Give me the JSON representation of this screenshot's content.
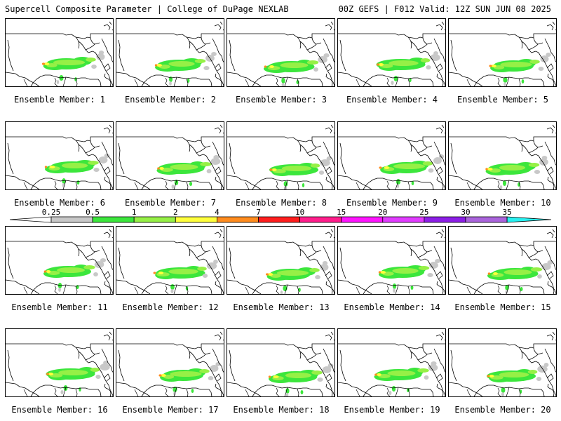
{
  "header": {
    "left_title": "Supercell Composite Parameter | College of DuPage NEXLAB",
    "right_title": "00Z GEFS | F012 Valid: 12Z SUN JUN 08 2025"
  },
  "colorbar": {
    "ticks": [
      "0.25",
      "0.5",
      "1",
      "2",
      "4",
      "7",
      "10",
      "15",
      "20",
      "25",
      "30",
      "35"
    ],
    "colors": [
      "#c8c8c8",
      "#3ce63c",
      "#96f046",
      "#ffff3c",
      "#ff8c1e",
      "#ff1e1e",
      "#ff1e8c",
      "#ff14ff",
      "#e13cff",
      "#8c1ee6",
      "#aa64dc",
      "#28f0f0"
    ]
  },
  "member_label_prefix": "Ensemble Member:",
  "panels": [
    {
      "member": "1",
      "label": "Ensemble Member: 1"
    },
    {
      "member": "2",
      "label": "Ensemble Member: 2"
    },
    {
      "member": "3",
      "label": "Ensemble Member: 3"
    },
    {
      "member": "4",
      "label": "Ensemble Member: 4"
    },
    {
      "member": "5",
      "label": "Ensemble Member: 5"
    },
    {
      "member": "6",
      "label": "Ensemble Member: 6"
    },
    {
      "member": "7",
      "label": "Ensemble Member: 7"
    },
    {
      "member": "8",
      "label": "Ensemble Member: 8"
    },
    {
      "member": "9",
      "label": "Ensemble Member: 9"
    },
    {
      "member": "10",
      "label": "Ensemble Member: 10"
    },
    {
      "member": "11",
      "label": "Ensemble Member: 11"
    },
    {
      "member": "12",
      "label": "Ensemble Member: 12"
    },
    {
      "member": "13",
      "label": "Ensemble Member: 13"
    },
    {
      "member": "14",
      "label": "Ensemble Member: 14"
    },
    {
      "member": "15",
      "label": "Ensemble Member: 15"
    },
    {
      "member": "16",
      "label": "Ensemble Member: 16"
    },
    {
      "member": "17",
      "label": "Ensemble Member: 17"
    },
    {
      "member": "18",
      "label": "Ensemble Member: 18"
    },
    {
      "member": "19",
      "label": "Ensemble Member: 19"
    },
    {
      "member": "20",
      "label": "Ensemble Member: 20"
    }
  ]
}
